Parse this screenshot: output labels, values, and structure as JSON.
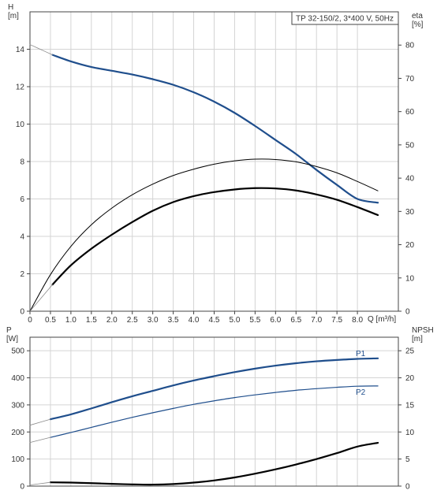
{
  "chart_data": [
    {
      "type": "line",
      "title": "TP 32-150/2, 3*400 V, 50Hz",
      "xlabel": "Q [m³/h]",
      "ylabel": "H\n[m]",
      "y2label": "eta\n[%]",
      "xlim": [
        0,
        9.0
      ],
      "ylim": [
        0,
        16
      ],
      "y2lim": [
        0,
        90
      ],
      "xticks": [
        0,
        0.5,
        1.0,
        1.5,
        2.0,
        2.5,
        3.0,
        3.5,
        4.0,
        4.5,
        5.0,
        5.5,
        6.0,
        6.5,
        7.0,
        7.5,
        8.0
      ],
      "xtick_labels": [
        "0",
        "0.5",
        "1.0",
        "1.5",
        "2.0",
        "2.5",
        "3.0",
        "3.5",
        "4.0",
        "4.5",
        "5.0",
        "5.5",
        "6.0",
        "6.5",
        "7.0",
        "7.5",
        "8.0"
      ],
      "yticks": [
        0,
        2,
        4,
        6,
        8,
        10,
        12,
        14
      ],
      "y2ticks": [
        0,
        10,
        20,
        30,
        40,
        50,
        60,
        70,
        80
      ],
      "grid": true,
      "colors": {
        "head": "#1f4e8c",
        "eta": "#000000",
        "extrapolation": "#8a8a8a"
      },
      "series": [
        {
          "key": "head",
          "axis": "left",
          "color": "#1f4e8c",
          "width": 2.2,
          "x": [
            0.55,
            1.0,
            1.5,
            2.0,
            2.5,
            3.0,
            3.5,
            4.0,
            4.5,
            5.0,
            5.5,
            6.0,
            6.5,
            7.0,
            7.5,
            8.0,
            8.5
          ],
          "y": [
            13.7,
            13.35,
            13.05,
            12.85,
            12.65,
            12.4,
            12.1,
            11.7,
            11.2,
            10.6,
            9.9,
            9.15,
            8.4,
            7.55,
            6.75,
            6.0,
            5.8
          ]
        },
        {
          "key": "head-extrapolation",
          "axis": "left",
          "color": "#8a8a8a",
          "width": 0.8,
          "x": [
            0,
            0.25,
            0.55
          ],
          "y": [
            14.25,
            14.0,
            13.7
          ]
        },
        {
          "key": "eta-thin",
          "axis": "right",
          "color": "#000000",
          "width": 1.0,
          "x": [
            0,
            0.5,
            1.0,
            1.5,
            2.0,
            2.5,
            3.0,
            3.5,
            4.0,
            4.5,
            5.0,
            5.5,
            6.0,
            6.5,
            7.0,
            7.5,
            8.0,
            8.5
          ],
          "y": [
            0,
            11,
            19.5,
            26,
            31,
            35,
            38.2,
            40.8,
            42.7,
            44.2,
            45.2,
            45.7,
            45.6,
            44.9,
            43.5,
            41.6,
            39.0,
            36.2
          ]
        },
        {
          "key": "eta-thick",
          "axis": "right",
          "color": "#000000",
          "width": 2.2,
          "x": [
            0.55,
            1.0,
            1.5,
            2.0,
            2.5,
            3.0,
            3.5,
            4.0,
            4.5,
            5.0,
            5.5,
            6.0,
            6.5,
            7.0,
            7.5,
            8.0,
            8.5
          ],
          "y": [
            8,
            13.8,
            18.8,
            23,
            26.8,
            30.2,
            32.8,
            34.6,
            35.8,
            36.6,
            37,
            36.9,
            36.3,
            35.1,
            33.5,
            31.3,
            28.9
          ]
        },
        {
          "key": "eta-extrapolation",
          "axis": "right",
          "color": "#8a8a8a",
          "width": 0.8,
          "x": [
            0,
            0.55
          ],
          "y": [
            0,
            8
          ]
        }
      ],
      "label_box": "TP 32-150/2, 3*400 V, 50Hz"
    },
    {
      "type": "line",
      "xlabel": "",
      "ylabel": "P\n[W]",
      "y2label": "NPSH\n[m]",
      "xlim": [
        0,
        9.0
      ],
      "ylim": [
        0,
        550
      ],
      "y2lim": [
        0,
        27.5
      ],
      "yticks": [
        0,
        100,
        200,
        300,
        400,
        500
      ],
      "y2ticks": [
        0,
        5,
        10,
        15,
        20,
        25
      ],
      "grid": true,
      "series": [
        {
          "key": "P1",
          "name": "P1",
          "axis": "left",
          "color": "#1f4e8c",
          "width": 2.2,
          "x": [
            0.5,
            1.0,
            1.5,
            2.0,
            2.5,
            3.0,
            3.5,
            4.0,
            4.5,
            5.0,
            5.5,
            6.0,
            6.5,
            7.0,
            7.5,
            8.0,
            8.5
          ],
          "y": [
            247,
            265,
            287,
            310,
            332,
            352,
            372,
            390,
            406,
            421,
            434,
            445,
            454,
            461,
            466,
            470,
            472
          ]
        },
        {
          "key": "P1-extrapolation",
          "axis": "left",
          "color": "#8a8a8a",
          "width": 0.8,
          "x": [
            0,
            0.5
          ],
          "y": [
            225,
            247
          ]
        },
        {
          "key": "P2",
          "name": "P2",
          "axis": "left",
          "color": "#1f4e8c",
          "width": 1.2,
          "x": [
            0.5,
            1.0,
            1.5,
            2.0,
            2.5,
            3.0,
            3.5,
            4.0,
            4.5,
            5.0,
            5.5,
            6.0,
            6.5,
            7.0,
            7.5,
            8.0,
            8.5
          ],
          "y": [
            180,
            198,
            217,
            236,
            254,
            271,
            287,
            302,
            315,
            327,
            337,
            346,
            354,
            360,
            365,
            369,
            370
          ]
        },
        {
          "key": "P2-extrapolation",
          "axis": "left",
          "color": "#8a8a8a",
          "width": 0.8,
          "x": [
            0,
            0.5
          ],
          "y": [
            161,
            180
          ]
        },
        {
          "key": "NPSH",
          "axis": "right",
          "color": "#000000",
          "width": 2.2,
          "x": [
            0.5,
            1.0,
            1.5,
            2.0,
            2.5,
            3.0,
            3.5,
            4.0,
            4.5,
            5.0,
            5.5,
            6.0,
            6.5,
            7.0,
            7.5,
            8.0,
            8.5
          ],
          "y": [
            0.7,
            0.65,
            0.55,
            0.42,
            0.32,
            0.28,
            0.38,
            0.65,
            1.05,
            1.6,
            2.3,
            3.1,
            4.0,
            5.0,
            6.1,
            7.3,
            8.0
          ]
        },
        {
          "key": "NPSH-extrapolation",
          "axis": "right",
          "color": "#8a8a8a",
          "width": 0.8,
          "x": [
            0,
            0.5
          ],
          "y": [
            0.2,
            0.7
          ]
        }
      ],
      "legend_labels": [
        "P1",
        "P2"
      ]
    }
  ]
}
